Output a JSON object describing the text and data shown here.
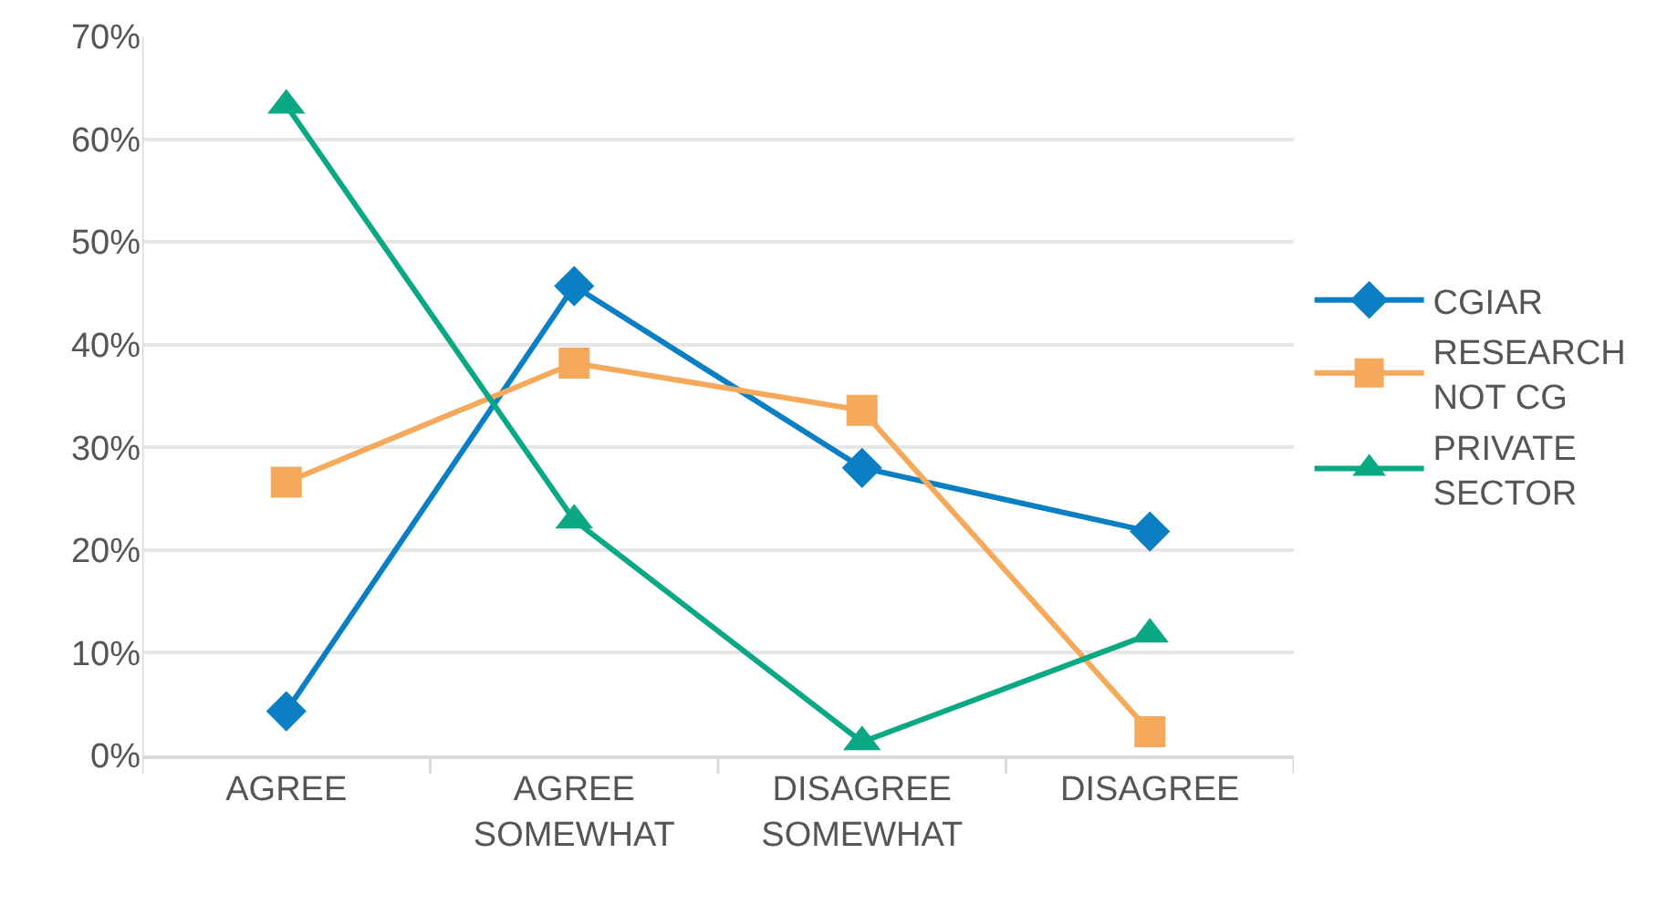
{
  "chart_data": {
    "type": "line",
    "categories": [
      "AGREE",
      "AGREE\nSOMEWHAT",
      "DISAGREE\nSOMEWHAT",
      "DISAGREE"
    ],
    "series": [
      {
        "name": "CGIAR",
        "color": "#0a7fc4",
        "marker": "diamond",
        "values": [
          4.3,
          45.7,
          28,
          21.8
        ]
      },
      {
        "name": "RESEARCH\nNOT CG",
        "color": "#f5a95a",
        "marker": "square",
        "values": [
          26.6,
          38.2,
          33.6,
          2.3
        ]
      },
      {
        "name": "PRIVATE\nSECTOR",
        "color": "#0aa884",
        "marker": "triangle",
        "values": [
          63.3,
          22.9,
          1.3,
          11.8
        ]
      }
    ],
    "ylim": [
      0,
      70
    ],
    "yticks": [
      {
        "value": 0,
        "label": "0%"
      },
      {
        "value": 10,
        "label": "10%"
      },
      {
        "value": 20,
        "label": "20%"
      },
      {
        "value": 30,
        "label": "30%"
      },
      {
        "value": 40,
        "label": "40%"
      },
      {
        "value": 50,
        "label": "50%"
      },
      {
        "value": 60,
        "label": "60%"
      },
      {
        "value": 70,
        "label": "70%"
      }
    ],
    "grid": "y",
    "legend": "right",
    "line_style": "solid"
  }
}
